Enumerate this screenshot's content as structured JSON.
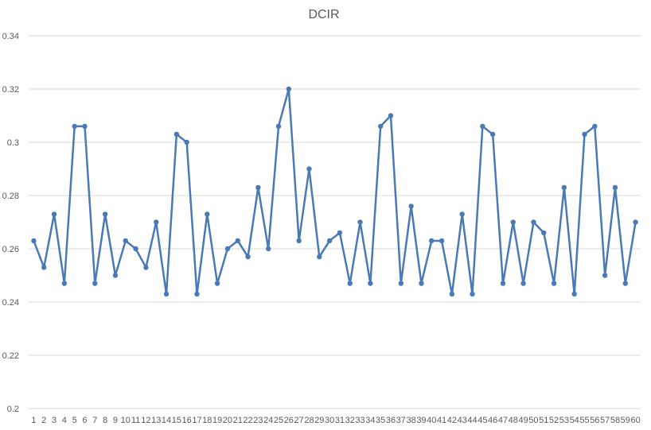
{
  "chart_data": {
    "type": "line",
    "title": "DCIR",
    "xlabel": "",
    "ylabel": "",
    "ylim": [
      0.2,
      0.34
    ],
    "yticks": [
      "0.2",
      "0.22",
      "0.24",
      "0.26",
      "0.28",
      "0.3",
      "0.32",
      "0.34"
    ],
    "ytick_values": [
      0.2,
      0.22,
      0.24,
      0.26,
      0.28,
      0.3,
      0.32,
      0.34
    ],
    "grid": true,
    "color": "#4a7ab5",
    "categories": [
      "1",
      "2",
      "3",
      "4",
      "5",
      "6",
      "7",
      "8",
      "9",
      "10",
      "11",
      "12",
      "13",
      "14",
      "15",
      "16",
      "17",
      "18",
      "19",
      "20",
      "21",
      "22",
      "23",
      "24",
      "25",
      "26",
      "27",
      "28",
      "29",
      "30",
      "31",
      "32",
      "33",
      "34",
      "35",
      "36",
      "37",
      "38",
      "39",
      "40",
      "41",
      "42",
      "43",
      "44",
      "45",
      "46",
      "47",
      "48",
      "49",
      "50",
      "51",
      "52",
      "53",
      "54",
      "55",
      "56",
      "57",
      "58",
      "59",
      "60"
    ],
    "series": [
      {
        "name": "DCIR",
        "values": [
          0.263,
          0.253,
          0.273,
          0.247,
          0.306,
          0.306,
          0.247,
          0.273,
          0.25,
          0.263,
          0.26,
          0.253,
          0.27,
          0.243,
          0.303,
          0.3,
          0.243,
          0.273,
          0.247,
          0.26,
          0.263,
          0.257,
          0.283,
          0.26,
          0.306,
          0.32,
          0.263,
          0.29,
          0.257,
          0.263,
          0.266,
          0.247,
          0.27,
          0.247,
          0.306,
          0.31,
          0.247,
          0.276,
          0.247,
          0.263,
          0.263,
          0.243,
          0.273,
          0.243,
          0.306,
          0.303,
          0.247,
          0.27,
          0.247,
          0.27,
          0.266,
          0.247,
          0.283,
          0.243,
          0.303,
          0.306,
          0.25,
          0.283,
          0.247,
          0.27
        ]
      }
    ]
  }
}
